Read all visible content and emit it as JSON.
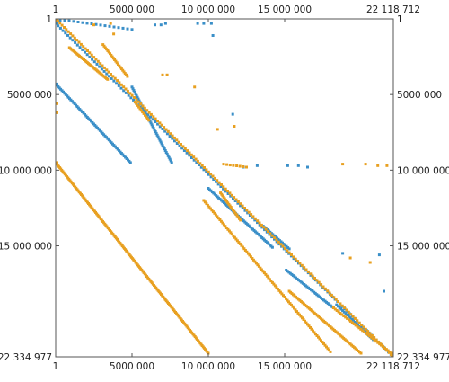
{
  "chart_data": {
    "type": "scatter",
    "title": "",
    "xlabel": "",
    "ylabel": "",
    "xlim": [
      1,
      22118712
    ],
    "ylim": [
      1,
      22334977
    ],
    "y_axis_inverted": true,
    "axes_on_all_sides": true,
    "grid": false,
    "x_ticks": [
      {
        "value": 1,
        "label": "1"
      },
      {
        "value": 5000000,
        "label": "5000 000"
      },
      {
        "value": 10000000,
        "label": "10 000 000"
      },
      {
        "value": 15000000,
        "label": "15 000 000"
      },
      {
        "value": 22118712,
        "label": "22 118 712"
      }
    ],
    "y_ticks": [
      {
        "value": 1,
        "label": "1"
      },
      {
        "value": 5000000,
        "label": "5000 000"
      },
      {
        "value": 10000000,
        "label": "10 000 000"
      },
      {
        "value": 15000000,
        "label": "15 000 000"
      },
      {
        "value": 22334977,
        "label": "22 334 977"
      }
    ],
    "series": [
      {
        "color": "#3a8fc8",
        "segments": [
          {
            "x_start": 0,
            "y_start": 300000,
            "x_end": 22118712,
            "y_end": 22334977,
            "count": 140
          },
          {
            "x_start": 0,
            "y_start": 4300000,
            "x_end": 4900000,
            "y_end": 9500000,
            "count": 60
          },
          {
            "x_start": 5000000,
            "y_start": 4500000,
            "x_end": 7600000,
            "y_end": 9500000,
            "count": 45
          },
          {
            "x_start": 10000000,
            "y_start": 11200000,
            "x_end": 14200000,
            "y_end": 15100000,
            "count": 50
          },
          {
            "x_start": 13600000,
            "y_start": 13700000,
            "x_end": 15300000,
            "y_end": 15200000,
            "count": 20
          },
          {
            "x_start": 15100000,
            "y_start": 16600000,
            "x_end": 18200000,
            "y_end": 19100000,
            "count": 35
          },
          {
            "x_start": 18400000,
            "y_start": 18900000,
            "x_end": 20800000,
            "y_end": 21200000,
            "count": 25
          },
          {
            "x_start": 0,
            "y_start": 0,
            "x_end": 5000000,
            "y_end": 700000,
            "count": 18
          }
        ],
        "points": [
          {
            "x": 6500000,
            "y": 400000
          },
          {
            "x": 6900000,
            "y": 400000
          },
          {
            "x": 7200000,
            "y": 300000
          },
          {
            "x": 9300000,
            "y": 300000
          },
          {
            "x": 9700000,
            "y": 300000
          },
          {
            "x": 10200000,
            "y": 300000
          },
          {
            "x": 10300000,
            "y": 1100000
          },
          {
            "x": 11600000,
            "y": 6300000
          },
          {
            "x": 12300000,
            "y": 9800000
          },
          {
            "x": 13200000,
            "y": 9700000
          },
          {
            "x": 15200000,
            "y": 9700000
          },
          {
            "x": 15900000,
            "y": 9700000
          },
          {
            "x": 16500000,
            "y": 9800000
          },
          {
            "x": 18800000,
            "y": 15500000
          },
          {
            "x": 21200000,
            "y": 15600000
          },
          {
            "x": 21500000,
            "y": 18000000
          }
        ]
      },
      {
        "color": "#e8a020",
        "segments": [
          {
            "x_start": 0,
            "y_start": 0,
            "x_end": 22118712,
            "y_end": 22334977,
            "count": 160
          },
          {
            "x_start": 900000,
            "y_start": 1900000,
            "x_end": 3400000,
            "y_end": 4000000,
            "count": 35
          },
          {
            "x_start": 3100000,
            "y_start": 1700000,
            "x_end": 4700000,
            "y_end": 3800000,
            "count": 22
          },
          {
            "x_start": 0,
            "y_start": 9500000,
            "x_end": 10000000,
            "y_end": 22100000,
            "count": 150
          },
          {
            "x_start": 5200000,
            "y_start": 5500000,
            "x_end": 6100000,
            "y_end": 6700000,
            "count": 12
          },
          {
            "x_start": 9700000,
            "y_start": 12000000,
            "x_end": 18000000,
            "y_end": 22000000,
            "count": 95
          },
          {
            "x_start": 10800000,
            "y_start": 11500000,
            "x_end": 12100000,
            "y_end": 13300000,
            "count": 20
          },
          {
            "x_start": 15300000,
            "y_start": 18000000,
            "x_end": 20000000,
            "y_end": 22100000,
            "count": 55
          },
          {
            "x_start": 18200000,
            "y_start": 19100000,
            "x_end": 22000000,
            "y_end": 22100000,
            "count": 35
          },
          {
            "x_start": 11000000,
            "y_start": 9600000,
            "x_end": 12500000,
            "y_end": 9800000,
            "count": 8
          }
        ],
        "points": [
          {
            "x": 2500000,
            "y": 400000
          },
          {
            "x": 3600000,
            "y": 300000
          },
          {
            "x": 3800000,
            "y": 1000000
          },
          {
            "x": 7000000,
            "y": 3700000
          },
          {
            "x": 7300000,
            "y": 3700000
          },
          {
            "x": 9100000,
            "y": 4500000
          },
          {
            "x": 10600000,
            "y": 7300000
          },
          {
            "x": 11700000,
            "y": 7100000
          },
          {
            "x": 18800000,
            "y": 9600000
          },
          {
            "x": 20300000,
            "y": 9600000
          },
          {
            "x": 21100000,
            "y": 9700000
          },
          {
            "x": 21700000,
            "y": 9700000
          },
          {
            "x": 19300000,
            "y": 15800000
          },
          {
            "x": 20600000,
            "y": 16100000
          },
          {
            "x": 0,
            "y": 5600000
          },
          {
            "x": 0,
            "y": 6200000
          }
        ]
      }
    ]
  }
}
